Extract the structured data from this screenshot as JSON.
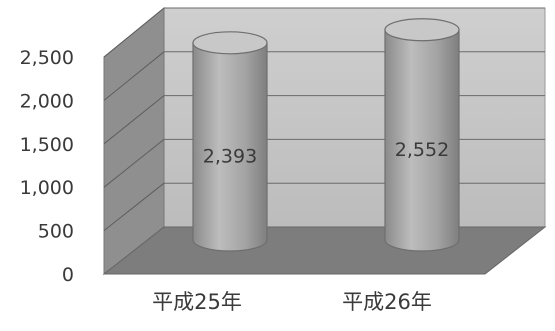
{
  "chart_data": {
    "type": "bar",
    "style": "3d-cylinder",
    "categories": [
      "平成25年",
      "平成26年"
    ],
    "values": [
      2393,
      2552
    ],
    "value_labels": [
      "2,393",
      "2,552"
    ],
    "ylim": [
      0,
      2500
    ],
    "yticks": [
      0,
      500,
      1000,
      1500,
      2000,
      2500
    ],
    "ytick_labels": [
      "0",
      "500",
      "1,000",
      "1,500",
      "2,000",
      "2,500"
    ],
    "grid": true,
    "title": "",
    "xlabel": "",
    "ylabel": "",
    "colors": {
      "cylinder_body": "#a8a8a8",
      "cylinder_top": "#c8c8c8",
      "back_wall": "#c4c4c4",
      "side_wall": "#8f8f8f",
      "floor": "#7d7d7d",
      "grid": "#6b6b6b",
      "text": "#3a3a3a"
    }
  }
}
